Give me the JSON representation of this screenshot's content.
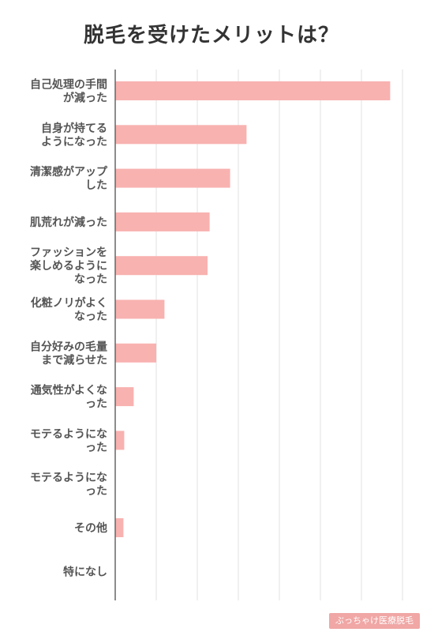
{
  "chart_data": {
    "type": "bar",
    "orientation": "horizontal",
    "title": "脱毛を受けたメリットは？",
    "xlabel": "",
    "ylabel": "",
    "xlim": [
      0,
      70
    ],
    "grid": true,
    "legend": "none",
    "bar_color": "#f8b2b0",
    "categories": [
      [
        "自己処理の手間",
        "が減った"
      ],
      [
        "自身が持てる",
        "ようになった"
      ],
      [
        "清潔感がアップ",
        "した"
      ],
      [
        "肌荒れが減った"
      ],
      [
        "ファッションを",
        "楽しめるように",
        "なった"
      ],
      [
        "化粧ノリがよく",
        "なった"
      ],
      [
        "自分好みの毛量",
        "まで減らせた"
      ],
      [
        "通気性がよくな",
        "った"
      ],
      [
        "モテるようにな",
        "った"
      ],
      [
        "モテるようにな",
        "った"
      ],
      [
        "その他"
      ],
      [
        "特になし"
      ]
    ],
    "values": [
      67,
      32,
      28,
      23,
      22.5,
      12,
      10,
      4.5,
      2.2,
      0,
      2,
      0
    ]
  },
  "watermark": {
    "text": "ぶっちゃけ医療脱毛",
    "color": "#f0a7a5"
  }
}
